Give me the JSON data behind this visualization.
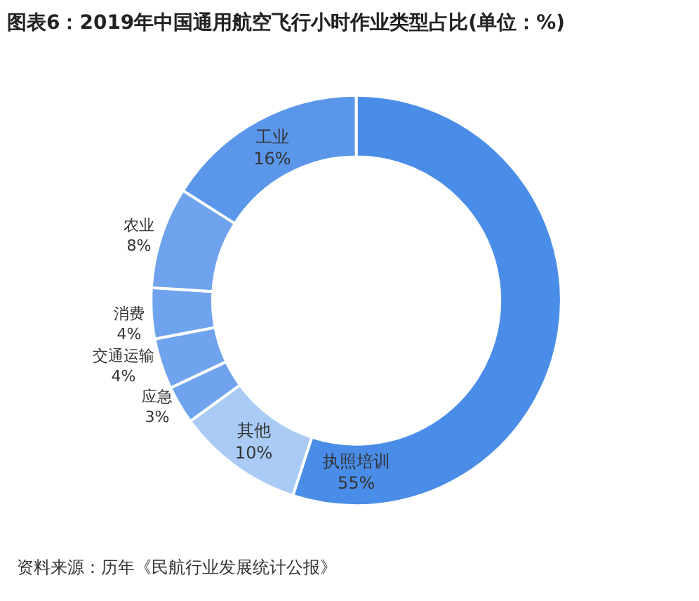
{
  "chart_data": {
    "type": "donut",
    "title": "图表6：2019年中国通用航空飞行小时作业类型占比(单位：%)",
    "categories": [
      "执照培训",
      "其他",
      "应急",
      "交通运输",
      "消费",
      "农业",
      "工业"
    ],
    "values": [
      55,
      10,
      3,
      4,
      4,
      8,
      16
    ],
    "value_labels": [
      "55%",
      "10%",
      "3%",
      "4%",
      "4%",
      "8%",
      "16%"
    ],
    "colors": [
      "#4a8de8",
      "#a9cbf5",
      "#6fa3ee",
      "#6fa3ee",
      "#6fa3ee",
      "#6fa3ee",
      "#5a97ea"
    ],
    "legend": false,
    "annotations": [
      "资料来源：历年《民航行业发展统计公报》"
    ]
  }
}
